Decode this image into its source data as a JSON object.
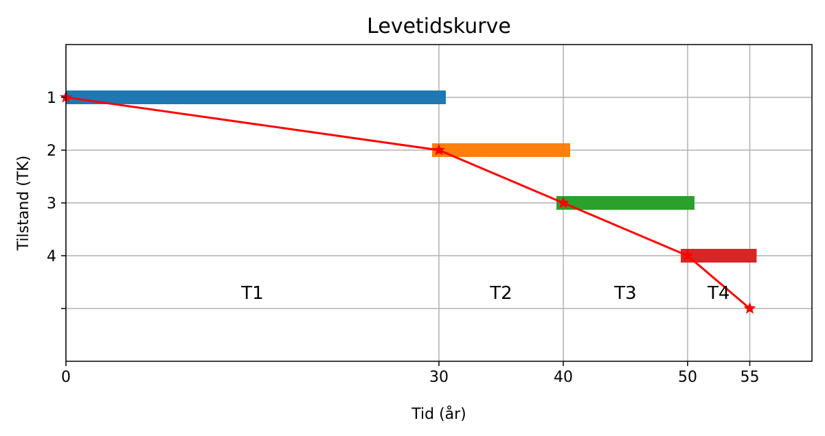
{
  "chart_data": {
    "type": "line",
    "title": "Levetidskurve",
    "xlabel": "Tid (år)",
    "ylabel": "Tilstand (TK)",
    "xlim": [
      0,
      60
    ],
    "ylim": [
      6,
      0
    ],
    "xticks": [
      0,
      30,
      40,
      50,
      55
    ],
    "xtick_labels": [
      "0",
      "30",
      "40",
      "50",
      "55"
    ],
    "yticks": [
      1,
      2,
      3,
      4,
      5
    ],
    "ytick_labels": [
      "1",
      "2",
      "3",
      "4",
      ""
    ],
    "grid": true,
    "bars": [
      {
        "y": 1,
        "x_start": 0,
        "x_end": 30,
        "color": "#1f77b4"
      },
      {
        "y": 2,
        "x_start": 30,
        "x_end": 40,
        "color": "#ff7f0e"
      },
      {
        "y": 3,
        "x_start": 40,
        "x_end": 50,
        "color": "#2ca02c"
      },
      {
        "y": 4,
        "x_start": 50,
        "x_end": 55,
        "color": "#d62728"
      }
    ],
    "series": [
      {
        "x": [
          0,
          30,
          40,
          50,
          55
        ],
        "y": [
          1,
          2,
          3,
          4,
          5
        ],
        "color": "#ff0000",
        "marker": "star"
      }
    ],
    "annotations": [
      {
        "text": "T1",
        "x": 15,
        "y": 4.7
      },
      {
        "text": "T2",
        "x": 35,
        "y": 4.7
      },
      {
        "text": "T3",
        "x": 45,
        "y": 4.7
      },
      {
        "text": "T4",
        "x": 52.5,
        "y": 4.7
      }
    ]
  }
}
